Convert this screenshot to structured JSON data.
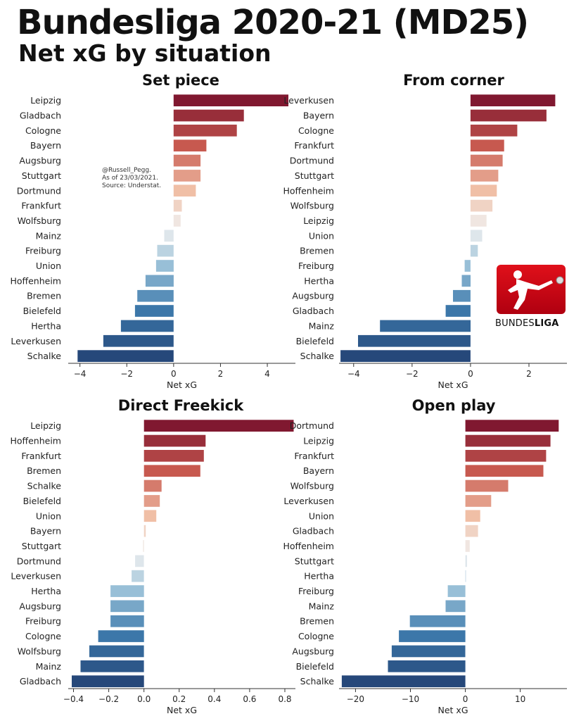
{
  "header": {
    "title": "Bundesliga 2020-21 (MD25)",
    "subtitle": "Net xG by situation"
  },
  "credit": {
    "line1": "@Russell_Pegg.",
    "line2": "As of 23/03/2021.",
    "line3": "Source: Understat."
  },
  "logo": {
    "text_bold_part": "BUNDES",
    "text_part2": "LIGA"
  },
  "chart_data": [
    {
      "type": "bar",
      "orientation": "horizontal",
      "title": "Set piece",
      "xlabel": "Net xG",
      "xlim": [
        -4.5,
        5.2
      ],
      "xticks": [
        -4,
        -2,
        0,
        2,
        4
      ],
      "xtick_labels": [
        "−4",
        "−2",
        "0",
        "2",
        "4"
      ],
      "categories": [
        "Leipzig",
        "Gladbach",
        "Cologne",
        "Bayern",
        "Augsburg",
        "Stuttgart",
        "Dortmund",
        "Frankfurt",
        "Wolfsburg",
        "Mainz",
        "Freiburg",
        "Union",
        "Hoffenheim",
        "Bremen",
        "Bielefeld",
        "Hertha",
        "Leverkusen",
        "Schalke"
      ],
      "values": [
        4.9,
        3.0,
        2.7,
        1.4,
        1.15,
        1.15,
        0.95,
        0.35,
        0.3,
        -0.4,
        -0.7,
        -0.75,
        -1.2,
        -1.55,
        -1.65,
        -2.25,
        -3.0,
        -4.1
      ]
    },
    {
      "type": "bar",
      "orientation": "horizontal",
      "title": "From corner",
      "xlabel": "Net xG",
      "xlim": [
        -4.5,
        3.3
      ],
      "xticks": [
        -4,
        -2,
        0,
        2
      ],
      "xtick_labels": [
        "−4",
        "−2",
        "0",
        "2"
      ],
      "categories": [
        "Leverkusen",
        "Bayern",
        "Cologne",
        "Frankfurt",
        "Dortmund",
        "Stuttgart",
        "Hoffenheim",
        "Wolfsburg",
        "Leipzig",
        "Union",
        "Bremen",
        "Freiburg",
        "Hertha",
        "Augsburg",
        "Gladbach",
        "Mainz",
        "Bielefeld",
        "Schalke"
      ],
      "values": [
        2.9,
        2.6,
        1.6,
        1.15,
        1.1,
        0.95,
        0.9,
        0.75,
        0.55,
        0.4,
        0.25,
        -0.2,
        -0.3,
        -0.6,
        -0.85,
        -3.1,
        -3.85,
        -4.45
      ]
    },
    {
      "type": "bar",
      "orientation": "horizontal",
      "title": "Direct Freekick",
      "xlabel": "Net xG",
      "xlim": [
        -0.43,
        0.86
      ],
      "xticks": [
        -0.4,
        -0.2,
        0.0,
        0.2,
        0.4,
        0.6,
        0.8
      ],
      "xtick_labels": [
        "−0.4",
        "−0.2",
        "0.0",
        "0.2",
        "0.4",
        "0.6",
        "0.8"
      ],
      "categories": [
        "Leipzig",
        "Hoffenheim",
        "Frankfurt",
        "Bremen",
        "Schalke",
        "Bielefeld",
        "Union",
        "Bayern",
        "Stuttgart",
        "Dortmund",
        "Leverkusen",
        "Hertha",
        "Augsburg",
        "Freiburg",
        "Cologne",
        "Wolfsburg",
        "Mainz",
        "Gladbach"
      ],
      "values": [
        0.85,
        0.35,
        0.34,
        0.32,
        0.1,
        0.09,
        0.07,
        0.01,
        -0.005,
        -0.05,
        -0.07,
        -0.19,
        -0.19,
        -0.19,
        -0.26,
        -0.31,
        -0.36,
        -0.41
      ]
    },
    {
      "type": "bar",
      "orientation": "horizontal",
      "title": "Open play",
      "xlabel": "Net xG",
      "xlim": [
        -23,
        18.5
      ],
      "xticks": [
        -20,
        -10,
        0,
        10
      ],
      "xtick_labels": [
        "−20",
        "−10",
        "0",
        "10"
      ],
      "categories": [
        "Dortmund",
        "Leipzig",
        "Frankfurt",
        "Bayern",
        "Wolfsburg",
        "Leverkusen",
        "Union",
        "Gladbach",
        "Hoffenheim",
        "Stuttgart",
        "Hertha",
        "Freiburg",
        "Mainz",
        "Bremen",
        "Cologne",
        "Augsburg",
        "Bielefeld",
        "Schalke"
      ],
      "values": [
        17.0,
        15.5,
        14.7,
        14.2,
        7.8,
        4.7,
        2.7,
        2.3,
        0.8,
        0.3,
        0.0,
        -3.2,
        -3.6,
        -10.1,
        -12.1,
        -13.4,
        -14.1,
        -22.5
      ]
    }
  ]
}
